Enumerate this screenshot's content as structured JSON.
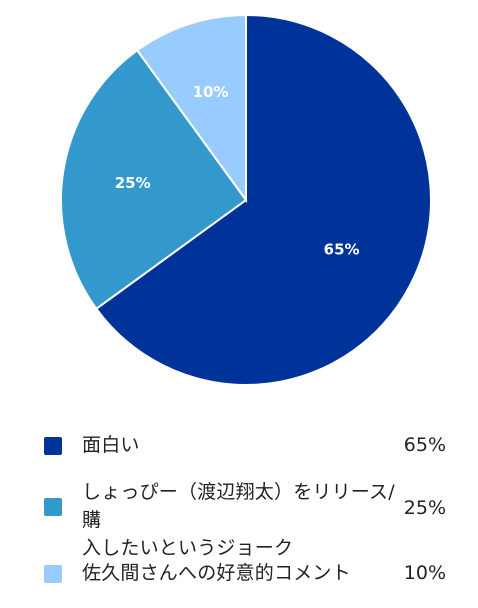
{
  "colors": {
    "slice_1": "#00339a",
    "slice_2": "#3398cc",
    "slice_3": "#99ccfe"
  },
  "chart_data": {
    "type": "pie",
    "slices": [
      {
        "label": "面白い",
        "value": 65,
        "value_label": "65%",
        "color": "#00339a"
      },
      {
        "label": "しょっぴー（渡辺翔太）をリリース/購入したいというジョーク",
        "value": 25,
        "value_label": "25%",
        "color": "#3398cc"
      },
      {
        "label": "佐久間さんへの好意的コメント",
        "value": 10,
        "value_label": "10%",
        "color": "#99ccfe"
      }
    ],
    "start_angle": "12 o'clock",
    "direction": "clockwise",
    "legend_position": "bottom"
  },
  "legend": {
    "items": [
      {
        "label": "面白い",
        "value": "65%",
        "swatch_icon": "square-swatch-icon"
      },
      {
        "label": "しょっぴー（渡辺翔太）をリリース/購\n入したいというジョーク",
        "value": "25%",
        "swatch_icon": "square-swatch-icon"
      },
      {
        "label": "佐久間さんへの好意的コメント",
        "value": "10%",
        "swatch_icon": "square-swatch-icon"
      }
    ]
  }
}
